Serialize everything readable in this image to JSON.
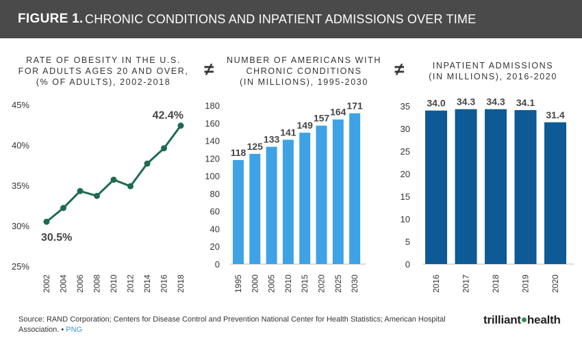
{
  "header": {
    "figure_label": "FIGURE 1.",
    "title": "CHRONIC CONDITIONS AND INPATIENT ADMISSIONS OVER TIME"
  },
  "symbols": {
    "neq": "≠"
  },
  "panels": [
    {
      "title_lines": [
        "RATE OF OBESITY IN THE U.S.",
        "FOR ADULTS AGES 20 AND OVER,",
        "(% OF ADULTS), 2002-2018"
      ]
    },
    {
      "title_lines": [
        "NUMBER OF AMERICANS WITH",
        "CHRONIC CONDITIONS",
        "(IN MILLIONS), 1995-2030"
      ]
    },
    {
      "title_lines": [
        "INPATIENT ADMISSIONS",
        "(IN MILLIONS), 2016-2020"
      ]
    }
  ],
  "chart_data": [
    {
      "type": "line",
      "title": "RATE OF OBESITY IN THE U.S. FOR ADULTS AGES 20 AND OVER, (% OF ADULTS), 2002-2018",
      "categories": [
        "2002",
        "2004",
        "2006",
        "2008",
        "2010",
        "2012",
        "2014",
        "2016",
        "2018"
      ],
      "values": [
        30.5,
        32.2,
        34.3,
        33.7,
        35.7,
        34.9,
        37.7,
        39.6,
        42.4
      ],
      "ylim": [
        25,
        45
      ],
      "yticks": [
        25,
        30,
        35,
        40,
        45
      ],
      "ytick_labels": [
        "25%",
        "30%",
        "35%",
        "40%",
        "45%"
      ],
      "annotations": [
        {
          "index": 0,
          "text": "30.5%"
        },
        {
          "index": 8,
          "text": "42.4%"
        }
      ],
      "color": "#1e6b4e"
    },
    {
      "type": "bar",
      "title": "NUMBER OF AMERICANS WITH CHRONIC CONDITIONS (IN MILLIONS), 1995-2030",
      "categories": [
        "1995",
        "2000",
        "2005",
        "2010",
        "2015",
        "2020",
        "2025",
        "2030"
      ],
      "values": [
        118,
        125,
        133,
        141,
        149,
        157,
        164,
        171
      ],
      "data_labels": [
        "118",
        "125",
        "133",
        "141",
        "149",
        "157",
        "164",
        "171"
      ],
      "ylim": [
        0,
        180
      ],
      "yticks": [
        0,
        20,
        40,
        60,
        80,
        100,
        120,
        140,
        160,
        180
      ],
      "ytick_labels": [
        "0",
        "20",
        "40",
        "60",
        "80",
        "100",
        "120",
        "140",
        "160",
        "180"
      ],
      "color": "#3ea3e6"
    },
    {
      "type": "bar",
      "title": "INPATIENT ADMISSIONS (IN MILLIONS), 2016-2020",
      "categories": [
        "2016",
        "2017",
        "2018",
        "2019",
        "2020"
      ],
      "values": [
        34.0,
        34.3,
        34.3,
        34.1,
        31.4
      ],
      "data_labels": [
        "34.0",
        "34.3",
        "34.3",
        "34.1",
        "31.4"
      ],
      "ylim": [
        0,
        35
      ],
      "yticks": [
        0,
        5,
        10,
        15,
        20,
        25,
        30,
        35
      ],
      "ytick_labels": [
        "0",
        "5",
        "10",
        "15",
        "20",
        "25",
        "30",
        "35"
      ],
      "color": "#0d5a96"
    }
  ],
  "footer": {
    "source": "Source: RAND Corporation; Centers for Disease Control and Prevention National Center for Health Statistics; American Hospital Association.",
    "sep": "•",
    "png_link": "PNG",
    "logo_left": "trilliant",
    "logo_right": "health"
  }
}
